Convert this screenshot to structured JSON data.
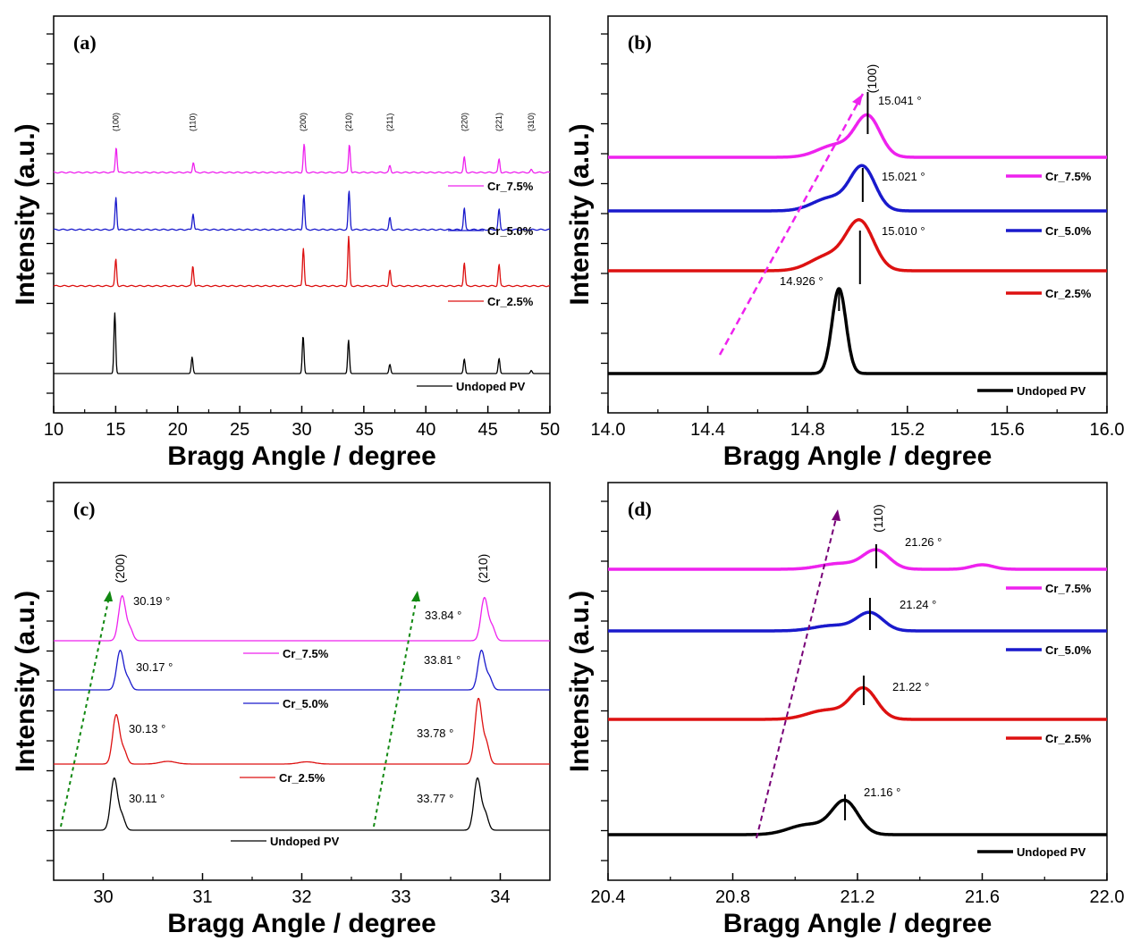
{
  "chart_data": [
    {
      "type": "line",
      "panel_label": "(a)",
      "xlabel": "Bragg Angle / degree",
      "ylabel": "Intensity (a.u.)",
      "xlim": [
        10,
        50
      ],
      "xticks": [
        "10",
        "15",
        "20",
        "25",
        "30",
        "35",
        "40",
        "45",
        "50"
      ],
      "y_tick_labels": false,
      "series": [
        {
          "name": "Undoped PV",
          "color": "#000000",
          "peaks": [
            [
              14.93,
              1.0
            ],
            [
              21.16,
              0.27
            ],
            [
              30.11,
              0.62
            ],
            [
              33.77,
              0.55
            ],
            [
              37.1,
              0.15
            ],
            [
              43.1,
              0.24
            ],
            [
              45.9,
              0.25
            ],
            [
              48.5,
              0.05
            ]
          ]
        },
        {
          "name": "Cr_2.5%",
          "color": "#dd1111",
          "peaks": [
            [
              15.01,
              0.6
            ],
            [
              21.22,
              0.45
            ],
            [
              30.13,
              0.85
            ],
            [
              33.78,
              1.1
            ],
            [
              37.1,
              0.35
            ],
            [
              43.1,
              0.52
            ],
            [
              45.9,
              0.48
            ]
          ]
        },
        {
          "name": "Cr_5.0%",
          "color": "#1a1acc",
          "peaks": [
            [
              15.02,
              0.6
            ],
            [
              21.24,
              0.3
            ],
            [
              30.17,
              0.65
            ],
            [
              33.81,
              0.72
            ],
            [
              37.1,
              0.22
            ],
            [
              43.1,
              0.4
            ],
            [
              45.9,
              0.38
            ]
          ]
        },
        {
          "name": "Cr_7.5%",
          "color": "#ee22ee",
          "peaks": [
            [
              15.04,
              0.38
            ],
            [
              21.26,
              0.15
            ],
            [
              30.19,
              0.42
            ],
            [
              33.84,
              0.42
            ],
            [
              37.1,
              0.1
            ],
            [
              43.1,
              0.23
            ],
            [
              45.9,
              0.2
            ],
            [
              48.5,
              0.04
            ]
          ]
        }
      ],
      "annotations": [
        {
          "text": "(100)",
          "x": 15.0
        },
        {
          "text": "(110)",
          "x": 21.2
        },
        {
          "text": "(200)",
          "x": 30.1
        },
        {
          "text": "(210)",
          "x": 33.8
        },
        {
          "text": "(211)",
          "x": 37.1
        },
        {
          "text": "(220)",
          "x": 43.1
        },
        {
          "text": "(221)",
          "x": 45.9
        },
        {
          "text": "(310)",
          "x": 48.5
        }
      ]
    },
    {
      "type": "line",
      "panel_label": "(b)",
      "xlabel": "Bragg Angle / degree",
      "ylabel": "Intensity (a.u.)",
      "xlim": [
        14.0,
        16.0
      ],
      "xticks": [
        "14.0",
        "14.4",
        "14.8",
        "15.2",
        "15.6",
        "16.0"
      ],
      "y_tick_labels": false,
      "series": [
        {
          "name": "Undoped PV",
          "color": "#000000",
          "peak": 14.926
        },
        {
          "name": "Cr_2.5%",
          "color": "#dd1111",
          "peak": 15.01
        },
        {
          "name": "Cr_5.0%",
          "color": "#1a1acc",
          "peak": 15.021
        },
        {
          "name": "Cr_7.5%",
          "color": "#ee22ee",
          "peak": 15.041
        }
      ],
      "annotations": [
        {
          "text": "(100)"
        },
        {
          "text": "14.926 °"
        },
        {
          "text": "15.010 °"
        },
        {
          "text": "15.021 °"
        },
        {
          "text": "15.041 °"
        }
      ]
    },
    {
      "type": "line",
      "panel_label": "(c)",
      "xlabel": "Bragg Angle / degree",
      "ylabel": "Intensity (a.u.)",
      "xlim": [
        29.5,
        34.5
      ],
      "xticks": [
        "30",
        "31",
        "32",
        "33",
        "34"
      ],
      "y_tick_labels": false,
      "series": [
        {
          "name": "Undoped PV",
          "color": "#000000",
          "peaks": [
            30.11,
            33.77
          ]
        },
        {
          "name": "Cr_2.5%",
          "color": "#dd1111",
          "peaks": [
            30.13,
            33.78
          ]
        },
        {
          "name": "Cr_5.0%",
          "color": "#1a1acc",
          "peaks": [
            30.17,
            33.81
          ]
        },
        {
          "name": "Cr_7.5%",
          "color": "#ee22ee",
          "peaks": [
            30.19,
            33.84
          ]
        }
      ],
      "annotations": [
        {
          "text": "(200)"
        },
        {
          "text": "(210)"
        },
        {
          "text": "30.11 °"
        },
        {
          "text": "30.13 °"
        },
        {
          "text": "30.17 °"
        },
        {
          "text": "30.19 °"
        },
        {
          "text": "33.77 °"
        },
        {
          "text": "33.78 °"
        },
        {
          "text": "33.81 °"
        },
        {
          "text": "33.84 °"
        }
      ]
    },
    {
      "type": "line",
      "panel_label": "(d)",
      "xlabel": "Bragg Angle / degree",
      "ylabel": "Intensity (a.u.)",
      "xlim": [
        20.4,
        22.0
      ],
      "xticks": [
        "20.4",
        "20.8",
        "21.2",
        "21.6",
        "22.0"
      ],
      "y_tick_labels": false,
      "series": [
        {
          "name": "Undoped PV",
          "color": "#000000",
          "peak": 21.16
        },
        {
          "name": "Cr_2.5%",
          "color": "#dd1111",
          "peak": 21.22
        },
        {
          "name": "Cr_5.0%",
          "color": "#1a1acc",
          "peak": 21.24
        },
        {
          "name": "Cr_7.5%",
          "color": "#ee22ee",
          "peak": 21.26
        }
      ],
      "annotations": [
        {
          "text": "(110)"
        },
        {
          "text": "21.16 °"
        },
        {
          "text": "21.22 °"
        },
        {
          "text": "21.24 °"
        },
        {
          "text": "21.26 °"
        }
      ]
    }
  ]
}
